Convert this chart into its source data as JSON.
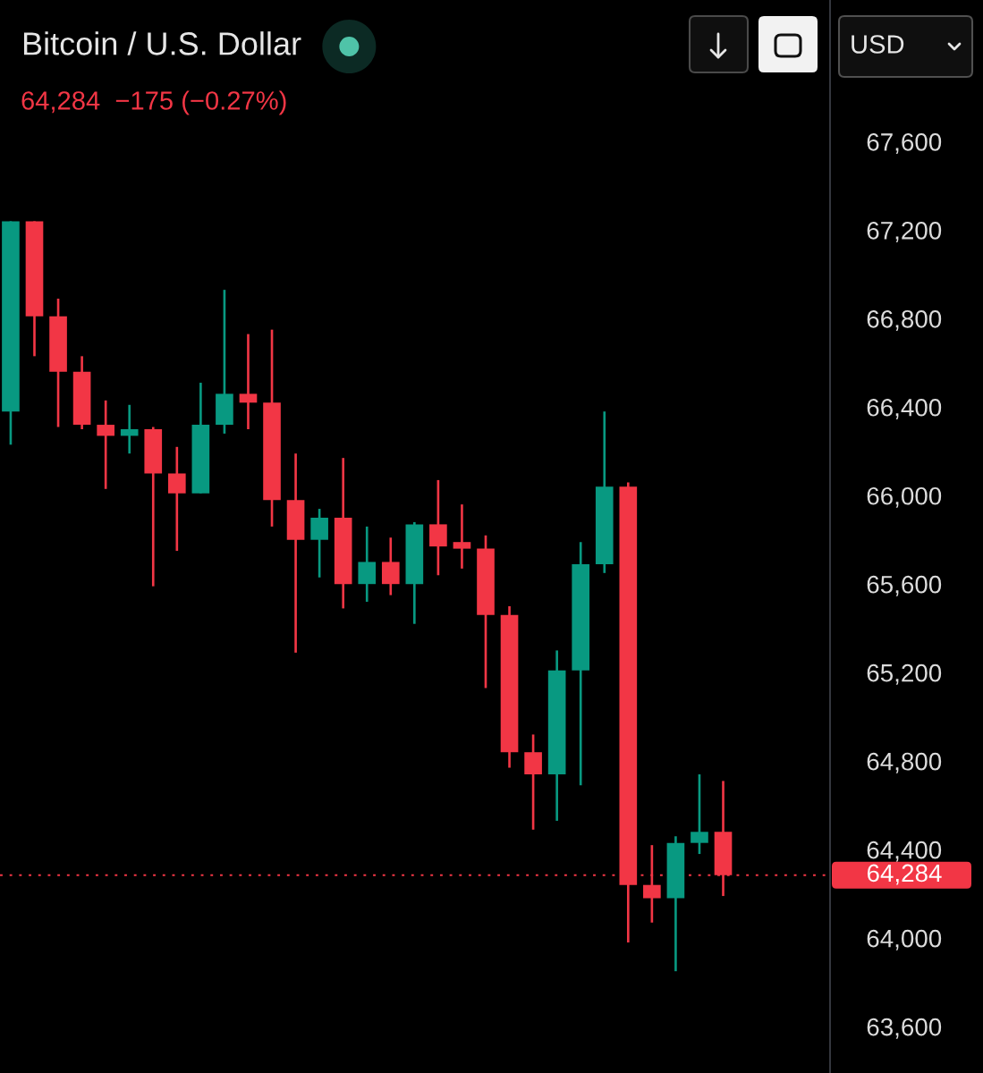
{
  "chart_data": {
    "type": "candlestick",
    "title": "Bitcoin / U.S. Dollar",
    "subtitle": "64,284  −175 (−0.27%)",
    "categories": [
      null,
      null,
      null,
      null,
      null,
      null,
      null,
      null,
      null,
      null,
      null,
      null,
      null,
      null,
      null,
      null,
      null,
      null,
      null,
      null,
      null,
      null,
      null,
      null,
      null,
      null,
      null,
      null,
      null,
      null,
      null
    ],
    "ohlc": [
      [
        66380,
        67240,
        66230,
        67240
      ],
      [
        67240,
        67240,
        66630,
        66810
      ],
      [
        66810,
        66890,
        66310,
        66560
      ],
      [
        66560,
        66630,
        66300,
        66320
      ],
      [
        66320,
        66430,
        66030,
        66270
      ],
      [
        66270,
        66410,
        66190,
        66300
      ],
      [
        66300,
        66310,
        65590,
        66100
      ],
      [
        66100,
        66220,
        65750,
        66010
      ],
      [
        66010,
        66510,
        66010,
        66320
      ],
      [
        66320,
        66930,
        66280,
        66460
      ],
      [
        66460,
        66730,
        66300,
        66420
      ],
      [
        66420,
        66750,
        65860,
        65980
      ],
      [
        65980,
        66190,
        65290,
        65800
      ],
      [
        65800,
        65940,
        65630,
        65900
      ],
      [
        65900,
        66170,
        65490,
        65600
      ],
      [
        65600,
        65860,
        65520,
        65700
      ],
      [
        65700,
        65810,
        65550,
        65600
      ],
      [
        65600,
        65880,
        65420,
        65870
      ],
      [
        65870,
        66070,
        65640,
        65770
      ],
      [
        65790,
        65960,
        65670,
        65760
      ],
      [
        65760,
        65820,
        65130,
        65460
      ],
      [
        65460,
        65500,
        64770,
        64840
      ],
      [
        64840,
        64920,
        64490,
        64740
      ],
      [
        64740,
        65300,
        64530,
        65210
      ],
      [
        65210,
        65790,
        64690,
        65690
      ],
      [
        65690,
        66380,
        65650,
        66040
      ],
      [
        66040,
        66060,
        63980,
        64240
      ],
      [
        64240,
        64420,
        64070,
        64180
      ],
      [
        64180,
        64460,
        63850,
        64430
      ],
      [
        64430,
        64740,
        64380,
        64480
      ],
      [
        64480,
        64710,
        64190,
        64284
      ]
    ],
    "colors": [
      "#089981",
      "#f23645",
      "#f23645",
      "#f23645",
      "#f23645",
      "#089981",
      "#f23645",
      "#f23645",
      "#089981",
      "#089981",
      "#f23645",
      "#f23645",
      "#f23645",
      "#089981",
      "#f23645",
      "#089981",
      "#f23645",
      "#089981",
      "#f23645",
      "#f23645",
      "#f23645",
      "#f23645",
      "#f23645",
      "#089981",
      "#089981",
      "#089981",
      "#f23645",
      "#f23645",
      "#089981",
      "#089981",
      "#f23645"
    ],
    "ylim": [
      63390,
      68240
    ],
    "yticks": [
      {
        "value": 63600,
        "label": "63,600"
      },
      {
        "value": 64000,
        "label": "64,000"
      },
      {
        "value": 64400,
        "label": "64,400"
      },
      {
        "value": 64800,
        "label": "64,800"
      },
      {
        "value": 65200,
        "label": "65,200"
      },
      {
        "value": 65600,
        "label": "65,600"
      },
      {
        "value": 66000,
        "label": "66,000"
      },
      {
        "value": 66400,
        "label": "66,400"
      },
      {
        "value": 66800,
        "label": "66,800"
      },
      {
        "value": 67200,
        "label": "67,200"
      },
      {
        "value": 67600,
        "label": "67,600"
      }
    ],
    "tick_labels": "y",
    "ref_lines": [
      {
        "axis": "y",
        "value": 64284,
        "label": "64,284",
        "color": "#f23645",
        "line_style": "dotted"
      }
    ],
    "annotations": [
      "USD"
    ]
  }
}
